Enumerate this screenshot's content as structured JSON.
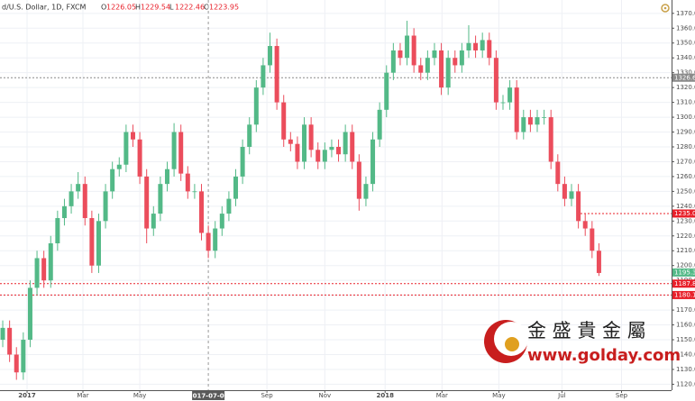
{
  "chart_data": {
    "type": "candlestick",
    "header": {
      "symbol": "d/U.S. Dollar, 1D, FXCM",
      "ohlc": [
        {
          "key": "O",
          "value": 1226.05
        },
        {
          "key": "H",
          "value": 1229.54
        },
        {
          "key": "L",
          "value": 1222.46
        },
        {
          "key": "C",
          "value": 1223.95
        }
      ]
    },
    "open": [
      1150,
      1158,
      1140,
      1128,
      1150,
      1185,
      1205,
      1190,
      1215,
      1232,
      1240,
      1250,
      1255,
      1232,
      1200,
      1230,
      1250,
      1265,
      1268,
      1290,
      1285,
      1260,
      1225,
      1235,
      1255,
      1265,
      1290,
      1262,
      1250,
      1250,
      1222,
      1210,
      1225,
      1235,
      1245,
      1260,
      1280,
      1295,
      1320,
      1335,
      1348,
      1310,
      1285,
      1282,
      1270,
      1295,
      1278,
      1270,
      1278,
      1280,
      1275,
      1290,
      1270,
      1245,
      1255,
      1285,
      1305,
      1330,
      1345,
      1340,
      1355,
      1335,
      1330,
      1340,
      1345,
      1320,
      1340,
      1335,
      1345,
      1350,
      1345,
      1352,
      1340,
      1310,
      1310,
      1320,
      1290,
      1300,
      1295,
      1300,
      1300,
      1270,
      1255,
      1245,
      1250,
      1230,
      1225,
      1210
    ],
    "high": [
      1163,
      1163,
      1145,
      1155,
      1190,
      1210,
      1210,
      1220,
      1237,
      1245,
      1255,
      1263,
      1260,
      1237,
      1235,
      1255,
      1270,
      1273,
      1295,
      1295,
      1290,
      1265,
      1240,
      1260,
      1270,
      1296,
      1295,
      1267,
      1255,
      1255,
      1227,
      1230,
      1240,
      1250,
      1265,
      1285,
      1300,
      1325,
      1340,
      1357,
      1353,
      1315,
      1290,
      1287,
      1300,
      1300,
      1283,
      1283,
      1285,
      1285,
      1295,
      1295,
      1275,
      1260,
      1290,
      1310,
      1335,
      1350,
      1350,
      1365,
      1360,
      1340,
      1345,
      1350,
      1350,
      1345,
      1345,
      1350,
      1362,
      1355,
      1357,
      1357,
      1345,
      1315,
      1325,
      1325,
      1305,
      1305,
      1305,
      1305,
      1305,
      1275,
      1260,
      1255,
      1255,
      1235,
      1230,
      1215
    ],
    "low": [
      1145,
      1135,
      1123,
      1123,
      1145,
      1180,
      1185,
      1185,
      1210,
      1227,
      1235,
      1245,
      1227,
      1195,
      1195,
      1225,
      1245,
      1260,
      1263,
      1280,
      1255,
      1215,
      1220,
      1230,
      1250,
      1260,
      1257,
      1245,
      1245,
      1217,
      1205,
      1205,
      1220,
      1230,
      1240,
      1255,
      1275,
      1290,
      1315,
      1330,
      1305,
      1280,
      1277,
      1265,
      1265,
      1273,
      1265,
      1265,
      1273,
      1270,
      1270,
      1265,
      1237,
      1240,
      1250,
      1280,
      1300,
      1325,
      1335,
      1335,
      1330,
      1325,
      1325,
      1335,
      1315,
      1315,
      1330,
      1330,
      1340,
      1340,
      1340,
      1335,
      1305,
      1305,
      1305,
      1285,
      1285,
      1290,
      1290,
      1295,
      1265,
      1250,
      1240,
      1240,
      1225,
      1220,
      1205,
      1193
    ],
    "close": [
      1158,
      1140,
      1128,
      1150,
      1185,
      1205,
      1190,
      1215,
      1232,
      1240,
      1250,
      1255,
      1232,
      1200,
      1230,
      1250,
      1265,
      1268,
      1290,
      1285,
      1260,
      1225,
      1235,
      1255,
      1265,
      1290,
      1262,
      1250,
      1250,
      1222,
      1210,
      1225,
      1235,
      1245,
      1260,
      1280,
      1295,
      1320,
      1335,
      1348,
      1310,
      1285,
      1282,
      1270,
      1295,
      1278,
      1270,
      1278,
      1280,
      1275,
      1290,
      1270,
      1245,
      1255,
      1285,
      1305,
      1330,
      1345,
      1340,
      1355,
      1335,
      1330,
      1340,
      1345,
      1320,
      1340,
      1335,
      1345,
      1350,
      1345,
      1352,
      1340,
      1310,
      1310,
      1320,
      1290,
      1300,
      1295,
      1300,
      1300,
      1270,
      1255,
      1245,
      1250,
      1230,
      1225,
      1210,
      1195
    ],
    "up_color": "#53b987",
    "down_color": "#eb4d5c",
    "ylim": [
      1116,
      1379
    ],
    "yticks": [
      {
        "value": 1120,
        "label": "1120.00"
      },
      {
        "value": 1130,
        "label": "1130.00"
      },
      {
        "value": 1140,
        "label": "1140.00"
      },
      {
        "value": 1150,
        "label": "1150.00"
      },
      {
        "value": 1160,
        "label": "1160.00"
      },
      {
        "value": 1170,
        "label": "1170.00"
      },
      {
        "value": 1180,
        "label": "1180.00"
      },
      {
        "value": 1190,
        "label": "1190.00"
      },
      {
        "value": 1200,
        "label": "1200.00"
      },
      {
        "value": 1210,
        "label": "1210.00"
      },
      {
        "value": 1220,
        "label": "1220.00"
      },
      {
        "value": 1230,
        "label": "1230.00"
      },
      {
        "value": 1240,
        "label": "1240.00"
      },
      {
        "value": 1250,
        "label": "1250.00"
      },
      {
        "value": 1260,
        "label": "1260.00"
      },
      {
        "value": 1270,
        "label": "1270.00"
      },
      {
        "value": 1280,
        "label": "1280.00"
      },
      {
        "value": 1290,
        "label": "1290.00"
      },
      {
        "value": 1300,
        "label": "1300.00"
      },
      {
        "value": 1310,
        "label": "1310.00"
      },
      {
        "value": 1320,
        "label": "1320.00"
      },
      {
        "value": 1330,
        "label": "1330.00"
      },
      {
        "value": 1340,
        "label": "1340.00"
      },
      {
        "value": 1350,
        "label": "1350.00"
      },
      {
        "value": 1360,
        "label": "1360.00"
      },
      {
        "value": 1370,
        "label": "1370.00"
      }
    ],
    "xlim": [
      -0.4,
      97.6
    ],
    "xticks": [
      {
        "value": 3.55,
        "label": "2017"
      },
      {
        "value": 11.7,
        "label": "Mar"
      },
      {
        "value": 20,
        "label": "May"
      },
      {
        "value": 38.55,
        "label": "Sep"
      },
      {
        "value": 47,
        "label": "Nov"
      },
      {
        "value": 55.8,
        "label": "2018"
      },
      {
        "value": 64.1,
        "label": "Mar"
      },
      {
        "value": 72.4,
        "label": "May"
      },
      {
        "value": 81.6,
        "label": "Jul"
      },
      {
        "value": 90.3,
        "label": "Sep"
      }
    ],
    "crosshair": {
      "value": 30,
      "label": "2017-07-06"
    },
    "grid": true,
    "levels": [
      {
        "value": 1326.61,
        "color": "#8a8a8a"
      },
      {
        "value": 1235.08,
        "color": "#e8202a"
      },
      {
        "value": 1187.82,
        "color": "#e8202a"
      },
      {
        "value": 1180.12,
        "color": "#e8202a"
      }
    ],
    "last_price": 1195.33,
    "logo": {
      "name": "金 盛 貴 金 屬",
      "url": "www.golday.com"
    }
  }
}
